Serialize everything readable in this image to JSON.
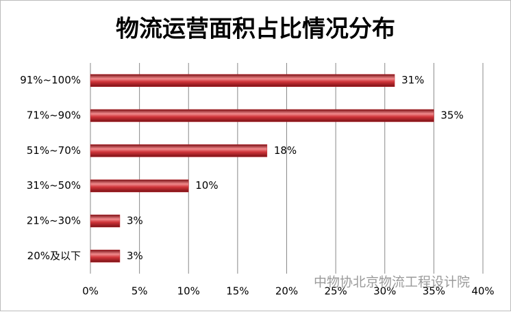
{
  "chart_data": {
    "type": "barh",
    "title": "物流运营面积占比情况分布",
    "categories": [
      "91%~100%",
      "71%~90%",
      "51%~70%",
      "31%~50%",
      "21%~30%",
      "20%及以下"
    ],
    "values": [
      31,
      35,
      18,
      10,
      3,
      3
    ],
    "value_labels": [
      "31%",
      "35%",
      "18%",
      "10%",
      "3%",
      "3%"
    ],
    "color": "#c0282e",
    "xlim": [
      0,
      40
    ],
    "xticks": [
      {
        "value": 0,
        "label": "0%"
      },
      {
        "value": 5,
        "label": "5%"
      },
      {
        "value": 10,
        "label": "10%"
      },
      {
        "value": 15,
        "label": "15%"
      },
      {
        "value": 20,
        "label": "20%"
      },
      {
        "value": 25,
        "label": "25%"
      },
      {
        "value": 30,
        "label": "30%"
      },
      {
        "value": 35,
        "label": "35%"
      },
      {
        "value": 40,
        "label": "40%"
      }
    ],
    "grid": true,
    "annotation": "中物协北京物流工程设计院"
  }
}
